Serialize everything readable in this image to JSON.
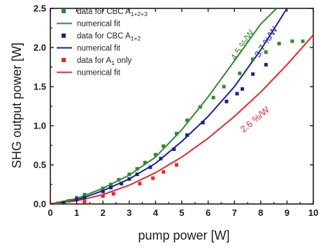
{
  "chart_data": {
    "type": "scatter",
    "xlabel": "pump power [W]",
    "ylabel": "SHG output power [W]",
    "xlim": [
      0,
      10
    ],
    "ylim": [
      0,
      2.5
    ],
    "x_ticks": [
      "0",
      "1",
      "2",
      "3",
      "4",
      "5",
      "6",
      "7",
      "8",
      "9",
      "10"
    ],
    "y_ticks": [
      "0.0",
      "0.5",
      "1.0",
      "1.5",
      "2.0",
      "2.5"
    ],
    "grid": false,
    "legend_position": "top-left",
    "series": [
      {
        "name": "data for CBC A1+2+3",
        "label_main": "data for CBC A",
        "label_sub": "1+2+3",
        "kind": "scatter",
        "color": "#2e8b2e",
        "x": [
          0.3,
          0.5,
          0.7,
          1.0,
          1.3,
          2.0,
          2.3,
          2.6,
          3.0,
          3.3,
          3.6,
          4.0,
          4.3,
          4.8,
          5.2,
          5.7,
          6.2,
          6.6,
          7.2,
          7.7,
          8.2,
          8.7,
          9.2,
          9.6
        ],
        "y": [
          0.01,
          0.02,
          0.04,
          0.08,
          0.12,
          0.2,
          0.25,
          0.31,
          0.38,
          0.45,
          0.53,
          0.63,
          0.74,
          0.9,
          1.07,
          1.24,
          1.36,
          1.5,
          1.67,
          1.85,
          1.94,
          2.05,
          2.08,
          2.08
        ]
      },
      {
        "name": "numerical fit",
        "kind": "line",
        "color": "#2e8b2e",
        "x": [
          0,
          1,
          2,
          3,
          4,
          5,
          6,
          7,
          8,
          8.6
        ],
        "y": [
          0,
          0.07,
          0.2,
          0.37,
          0.6,
          0.95,
          1.37,
          1.83,
          2.3,
          2.5
        ]
      },
      {
        "name": "data for CBC A1+2",
        "label_main": "data for CBC A",
        "label_sub": "1+2",
        "kind": "scatter",
        "color": "#1a1f9e",
        "x": [
          0.5,
          1.0,
          1.3,
          2.0,
          2.3,
          2.7,
          3.0,
          3.3,
          3.8,
          4.2,
          4.7,
          5.2,
          5.8,
          6.7,
          7.1,
          7.3,
          7.7,
          8.2
        ],
        "y": [
          0.01,
          0.06,
          0.08,
          0.16,
          0.21,
          0.26,
          0.32,
          0.38,
          0.47,
          0.58,
          0.7,
          0.88,
          1.04,
          1.31,
          1.41,
          1.47,
          1.66,
          1.78
        ]
      },
      {
        "name": "numerical fit",
        "kind": "line",
        "color": "#1a1f9e",
        "x": [
          0,
          1,
          2,
          3,
          4,
          5,
          6,
          7,
          8,
          9.0
        ],
        "y": [
          0,
          0.05,
          0.17,
          0.32,
          0.52,
          0.8,
          1.12,
          1.5,
          1.97,
          2.5
        ]
      },
      {
        "name": "data for A1 only",
        "label_main": "data for A",
        "label_sub": "1",
        "label_tail": " only",
        "kind": "scatter",
        "color": "#e8262a",
        "x": [
          1.3,
          2.0,
          2.4,
          3.4,
          3.9,
          4.3,
          4.8
        ],
        "y": [
          0.03,
          0.1,
          0.13,
          0.26,
          0.33,
          0.41,
          0.5
        ]
      },
      {
        "name": "numerical fit",
        "kind": "line",
        "color": "#e8262a",
        "x": [
          0,
          1,
          2,
          3,
          4,
          5,
          6,
          7,
          8,
          9,
          10
        ],
        "y": [
          0,
          0.04,
          0.12,
          0.24,
          0.4,
          0.6,
          0.84,
          1.12,
          1.43,
          1.78,
          2.16
        ]
      }
    ],
    "annotations": [
      {
        "text": "4.5 %/W",
        "color": "#2e8b2e",
        "x": 7.4,
        "y": 2.01,
        "angle": -56
      },
      {
        "text": "3.7 %/W",
        "color": "#1a1f9e",
        "x": 8.3,
        "y": 2.05,
        "angle": -57
      },
      {
        "text": "2.6 %/W",
        "color": "#e8262a",
        "x": 7.85,
        "y": 1.05,
        "angle": -40
      }
    ]
  }
}
